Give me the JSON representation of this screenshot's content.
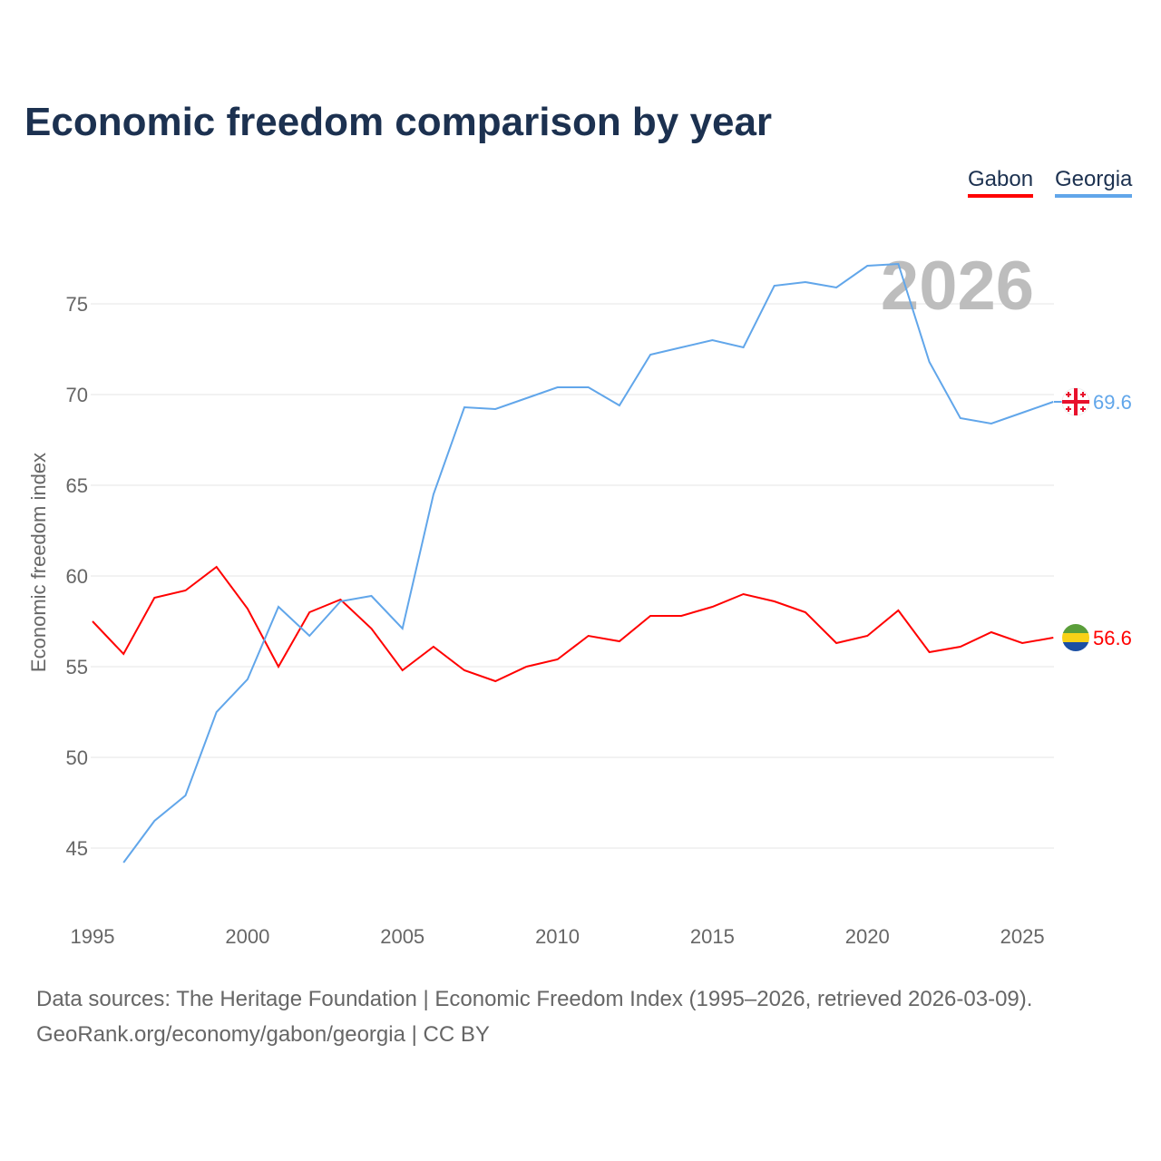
{
  "chart_data": {
    "type": "line",
    "title": "Economic freedom comparison by year",
    "xlabel": "",
    "ylabel": "Economic freedom index",
    "xlim": [
      1995,
      2026
    ],
    "ylim": [
      41,
      79
    ],
    "x_ticks": [
      "1995",
      "2000",
      "2005",
      "2010",
      "2015",
      "2020",
      "2025"
    ],
    "y_ticks": [
      "45",
      "50",
      "55",
      "60",
      "65",
      "70",
      "75"
    ],
    "grid": true,
    "legend_position": "top-right",
    "year_watermark": "2026",
    "series": [
      {
        "name": "Gabon",
        "color": "#ff0000",
        "end_label": "56.6",
        "flag": "gabon-flag",
        "x": [
          1995,
          1996,
          1997,
          1998,
          1999,
          2000,
          2001,
          2002,
          2003,
          2004,
          2005,
          2006,
          2007,
          2008,
          2009,
          2010,
          2011,
          2012,
          2013,
          2014,
          2015,
          2016,
          2017,
          2018,
          2019,
          2020,
          2021,
          2022,
          2023,
          2024,
          2025,
          2026
        ],
        "values": [
          57.5,
          55.7,
          58.8,
          59.2,
          60.5,
          58.2,
          55.0,
          58.0,
          58.7,
          57.1,
          54.8,
          56.1,
          54.8,
          54.2,
          55.0,
          55.4,
          56.7,
          56.4,
          57.8,
          57.8,
          58.3,
          59.0,
          58.6,
          58.0,
          56.3,
          56.7,
          58.1,
          55.8,
          56.1,
          56.9,
          56.3,
          56.6
        ]
      },
      {
        "name": "Georgia",
        "color": "#61a6ea",
        "end_label": "69.6",
        "flag": "georgia-flag",
        "x": [
          1996,
          1997,
          1998,
          1999,
          2000,
          2001,
          2002,
          2003,
          2004,
          2005,
          2006,
          2007,
          2008,
          2009,
          2010,
          2011,
          2012,
          2013,
          2014,
          2015,
          2016,
          2017,
          2018,
          2019,
          2020,
          2021,
          2022,
          2023,
          2024,
          2025,
          2026
        ],
        "values": [
          44.2,
          46.5,
          47.9,
          52.5,
          54.3,
          58.3,
          56.7,
          58.6,
          58.9,
          57.1,
          64.5,
          69.3,
          69.2,
          69.8,
          70.4,
          70.4,
          69.4,
          72.2,
          72.6,
          73.0,
          72.6,
          76.0,
          76.2,
          75.9,
          77.1,
          77.2,
          71.8,
          68.7,
          68.4,
          69.0,
          69.6
        ]
      }
    ]
  },
  "footer": {
    "line1": "Data sources: The Heritage Foundation | Economic Freedom Index (1995–2026, retrieved 2026-03-09).",
    "line2": "GeoRank.org/economy/gabon/georgia | CC BY"
  }
}
